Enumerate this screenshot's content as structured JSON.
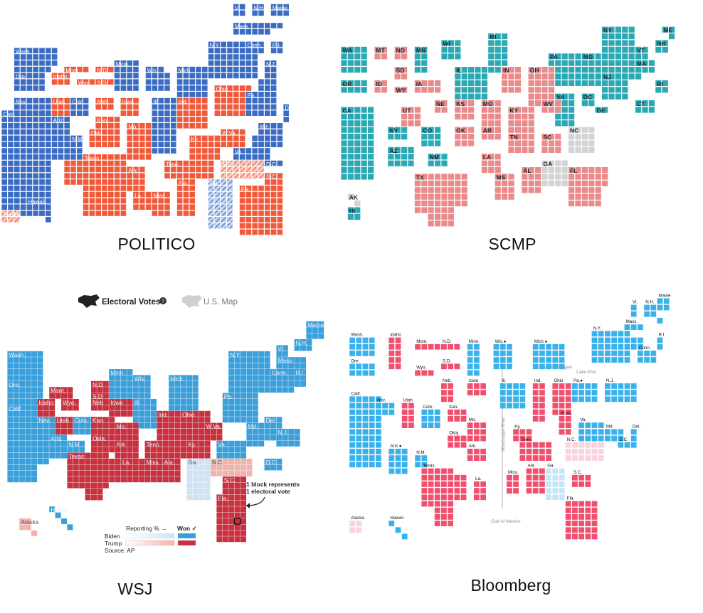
{
  "colors": {
    "politico_blue": "#3b6cc4",
    "politico_red": "#f05a3a",
    "scmp_teal": "#2aa8b4",
    "scmp_red": "#ea8a8a",
    "scmp_gray": "#d3d3d3",
    "wsj_blue": "#3aa0dc",
    "wsj_red": "#c9313f",
    "wsj_light_blue": "#cfe3f3",
    "wsj_light_red": "#f2b3ae",
    "bloomberg_blue": "#39b2ec",
    "bloomberg_red": "#f0506e",
    "bloomberg_light_blue": "#c5e6f8",
    "bloomberg_light_red": "#fbd3dc"
  },
  "captions": {
    "politico": "POLITICO",
    "scmp": "SCMP",
    "wsj": "WSJ",
    "bloomberg": "Bloomberg"
  },
  "wsj_ui": {
    "electoral_votes_toggle": "Electoral Votes",
    "us_map_toggle": "U.S. Map",
    "reporting_label": "Reporting % →",
    "won_label": "Won ✓",
    "biden_label": "Biden",
    "trump_label": "Trump",
    "source": "Source: AP",
    "annotation_line1": "1 block represents",
    "annotation_line2": "1 electoral vote"
  },
  "bloomberg_ui": {
    "lake_michigan": "Lake Michigan",
    "lake_erie": "Lake Erie",
    "mississippi_river": "Mississippi River",
    "gulf_of_mexico": "Gulf of Mexico"
  },
  "politico_states": [
    {
      "label": "Vt.",
      "party": "D"
    },
    {
      "label": "N.H.",
      "party": "D"
    },
    {
      "label": "Maine",
      "party": "D"
    },
    {
      "label": "Mass.",
      "party": "D"
    },
    {
      "label": "Conn.",
      "party": "D"
    },
    {
      "label": "R.I.",
      "party": "D"
    },
    {
      "label": "Wash.",
      "party": "D"
    },
    {
      "label": "Mont.",
      "party": "R"
    },
    {
      "label": "N.D.",
      "party": "R"
    },
    {
      "label": "Minn.",
      "party": "D"
    },
    {
      "label": "Wis.",
      "party": "D"
    },
    {
      "label": "Mich.",
      "party": "D"
    },
    {
      "label": "N.Y.",
      "party": "D"
    },
    {
      "label": "N.J.",
      "party": "D"
    },
    {
      "label": "Ore.",
      "party": "D"
    },
    {
      "label": "Idaho",
      "party": "R"
    },
    {
      "label": "Wyo.",
      "party": "R"
    },
    {
      "label": "S.D.",
      "party": "R"
    },
    {
      "label": "Nev.",
      "party": "D"
    },
    {
      "label": "Utah",
      "party": "R"
    },
    {
      "label": "Colo.",
      "party": "D"
    },
    {
      "label": "Neb.",
      "party": "R"
    },
    {
      "label": "Iowa",
      "party": "R"
    },
    {
      "label": "Ohio",
      "party": "R"
    },
    {
      "label": "Pa.",
      "party": "D"
    },
    {
      "label": "Ind.",
      "party": "R"
    },
    {
      "label": "Ill.",
      "party": "D"
    },
    {
      "label": "Del.",
      "party": "D"
    },
    {
      "label": "Calif.",
      "party": "D"
    },
    {
      "label": "Kan.",
      "party": "R"
    },
    {
      "label": "W.Va.",
      "party": "R"
    },
    {
      "label": "Md.",
      "party": "D"
    },
    {
      "label": "Ariz.",
      "party": "D"
    },
    {
      "label": "N.M.",
      "party": "D"
    },
    {
      "label": "Okla.",
      "party": "R"
    },
    {
      "label": "Mo.",
      "party": "R"
    },
    {
      "label": "Ky.",
      "party": "R"
    },
    {
      "label": "Va.",
      "party": "D"
    },
    {
      "label": "D.C.",
      "party": "D"
    },
    {
      "label": "Texas",
      "party": "R"
    },
    {
      "label": "Ark.",
      "party": "R"
    },
    {
      "label": "Tenn.",
      "party": "R"
    },
    {
      "label": "N.C.",
      "party": "R-lean"
    },
    {
      "label": "S.C.",
      "party": "R"
    },
    {
      "label": "La.",
      "party": "R"
    },
    {
      "label": "Miss.",
      "party": "R"
    },
    {
      "label": "Ala.",
      "party": "R"
    },
    {
      "label": "Ga.",
      "party": "D-lean"
    },
    {
      "label": "Fla.",
      "party": "R"
    },
    {
      "label": "Alaska",
      "party": "R-lean"
    },
    {
      "label": "Hawaii",
      "party": "D"
    }
  ],
  "scmp_states": [
    {
      "label": "ME",
      "party": "D"
    },
    {
      "label": "WA",
      "party": "D"
    },
    {
      "label": "MT",
      "party": "R"
    },
    {
      "label": "ND",
      "party": "R"
    },
    {
      "label": "MN",
      "party": "D"
    },
    {
      "label": "WI",
      "party": "D"
    },
    {
      "label": "MI",
      "party": "D"
    },
    {
      "label": "VT",
      "party": "D"
    },
    {
      "label": "NH",
      "party": "D"
    },
    {
      "label": "SD",
      "party": "R"
    },
    {
      "label": "NY",
      "party": "D"
    },
    {
      "label": "MA",
      "party": "D"
    },
    {
      "label": "PA",
      "party": "D"
    },
    {
      "label": "MD",
      "party": "D"
    },
    {
      "label": "OR",
      "party": "D"
    },
    {
      "label": "ID",
      "party": "R"
    },
    {
      "label": "WY",
      "party": "R"
    },
    {
      "label": "IA",
      "party": "R"
    },
    {
      "label": "IL",
      "party": "D"
    },
    {
      "label": "IN",
      "party": "R"
    },
    {
      "label": "OH",
      "party": "R"
    },
    {
      "label": "NJ",
      "party": "D"
    },
    {
      "label": "RI",
      "party": "D"
    },
    {
      "label": "CT",
      "party": "D"
    },
    {
      "label": "VA",
      "party": "D"
    },
    {
      "label": "DC",
      "party": "D"
    },
    {
      "label": "DE",
      "party": "D"
    },
    {
      "label": "CA",
      "party": "D"
    },
    {
      "label": "UT",
      "party": "R"
    },
    {
      "label": "NE",
      "party": "R"
    },
    {
      "label": "KS",
      "party": "R"
    },
    {
      "label": "MO",
      "party": "R"
    },
    {
      "label": "KY",
      "party": "R"
    },
    {
      "label": "WV",
      "party": "R"
    },
    {
      "label": "NV",
      "party": "D"
    },
    {
      "label": "CO",
      "party": "D"
    },
    {
      "label": "OK",
      "party": "R"
    },
    {
      "label": "AR",
      "party": "R"
    },
    {
      "label": "TN",
      "party": "R"
    },
    {
      "label": "SC",
      "party": "R"
    },
    {
      "label": "NC",
      "party": "U"
    },
    {
      "label": "AZ",
      "party": "D"
    },
    {
      "label": "NM",
      "party": "D"
    },
    {
      "label": "LA",
      "party": "R"
    },
    {
      "label": "GA",
      "party": "U"
    },
    {
      "label": "TX",
      "party": "R"
    },
    {
      "label": "MS",
      "party": "R"
    },
    {
      "label": "AL",
      "party": "R"
    },
    {
      "label": "FL",
      "party": "R"
    },
    {
      "label": "AK",
      "party": "U"
    },
    {
      "label": "HI",
      "party": "D"
    }
  ],
  "wsj_states": [
    {
      "label": "Maine",
      "party": "D"
    },
    {
      "label": "Vt.",
      "party": "D"
    },
    {
      "label": "N.H.",
      "party": "D"
    },
    {
      "label": "Mass.",
      "party": "D"
    },
    {
      "label": "Wash.",
      "party": "D"
    },
    {
      "label": "Conn.",
      "party": "D"
    },
    {
      "label": "R.I.",
      "party": "D"
    },
    {
      "label": "N.D",
      "party": "R"
    },
    {
      "label": "Minn.",
      "party": "D"
    },
    {
      "label": "Wis.",
      "party": "D"
    },
    {
      "label": "N.Y.",
      "party": "D"
    },
    {
      "label": "Ore.",
      "party": "D"
    },
    {
      "label": "Mont.",
      "party": "R"
    },
    {
      "label": "S.D",
      "party": "R"
    },
    {
      "label": "Iowa",
      "party": "R"
    },
    {
      "label": "Mich.",
      "party": "D"
    },
    {
      "label": "Idaho",
      "party": "R"
    },
    {
      "label": "Wyo.",
      "party": "R"
    },
    {
      "label": "Neb",
      "party": "R"
    },
    {
      "label": "Ill.",
      "party": "D"
    },
    {
      "label": "Pa.",
      "party": "D"
    },
    {
      "label": "Nev.",
      "party": "D"
    },
    {
      "label": "Utah",
      "party": "R"
    },
    {
      "label": "Colo.",
      "party": "D"
    },
    {
      "label": "Kan.",
      "party": "R"
    },
    {
      "label": "Mo.",
      "party": "R"
    },
    {
      "label": "Ind.",
      "party": "R"
    },
    {
      "label": "Ohio",
      "party": "R"
    },
    {
      "label": "W.Va.",
      "party": "R"
    },
    {
      "label": "Md.",
      "party": "D"
    },
    {
      "label": "Del.",
      "party": "D"
    },
    {
      "label": "N.J.",
      "party": "D"
    },
    {
      "label": "Calif.",
      "party": "D"
    },
    {
      "label": "Ariz.",
      "party": "D"
    },
    {
      "label": "N.M.",
      "party": "D"
    },
    {
      "label": "Okla.",
      "party": "R"
    },
    {
      "label": "Ark",
      "party": "R"
    },
    {
      "label": "Tenn.",
      "party": "R"
    },
    {
      "label": "Ky.",
      "party": "R"
    },
    {
      "label": "Va.",
      "party": "D"
    },
    {
      "label": "N.C.",
      "party": "R-lean"
    },
    {
      "label": "D.C.",
      "party": "D"
    },
    {
      "label": "Texas",
      "party": "R"
    },
    {
      "label": "La.",
      "party": "R"
    },
    {
      "label": "Miss.",
      "party": "R"
    },
    {
      "label": "Ala.",
      "party": "R"
    },
    {
      "label": "Ga.",
      "party": "D-lean"
    },
    {
      "label": "S.C.",
      "party": "R"
    },
    {
      "label": "Fla.",
      "party": "R"
    },
    {
      "label": "Alaska",
      "party": "R-lean"
    },
    {
      "label": "Hawaii",
      "party": "D"
    }
  ],
  "bloomberg_states": [
    {
      "label": "Vt.",
      "party": "D"
    },
    {
      "label": "N.H.",
      "party": "D"
    },
    {
      "label": "Maine",
      "party": "D"
    },
    {
      "label": "Mass.",
      "party": "D"
    },
    {
      "label": "Wash.",
      "party": "D"
    },
    {
      "label": "Idaho",
      "party": "R"
    },
    {
      "label": "Mont.",
      "party": "R"
    },
    {
      "label": "N.D.",
      "party": "R"
    },
    {
      "label": "Minn.",
      "party": "D"
    },
    {
      "label": "Wis.",
      "party": "D",
      "note": "●"
    },
    {
      "label": "Mich.",
      "party": "D",
      "note": "●"
    },
    {
      "label": "N.Y.",
      "party": "D"
    },
    {
      "label": "R.I.",
      "party": "D"
    },
    {
      "label": "Conn.",
      "party": "D"
    },
    {
      "label": "Ore.",
      "party": "D"
    },
    {
      "label": "S.D.",
      "party": "R"
    },
    {
      "label": "Wyo.",
      "party": "R"
    },
    {
      "label": "Neb.",
      "party": "R"
    },
    {
      "label": "Iowa",
      "party": "R"
    },
    {
      "label": "Ill.",
      "party": "D"
    },
    {
      "label": "Ind.",
      "party": "R"
    },
    {
      "label": "Ohio",
      "party": "R"
    },
    {
      "label": "Pa.",
      "party": "D",
      "note": "●"
    },
    {
      "label": "N.J.",
      "party": "D"
    },
    {
      "label": "Calif.",
      "party": "D"
    },
    {
      "label": "Nev.",
      "party": "D"
    },
    {
      "label": "Utah",
      "party": "R"
    },
    {
      "label": "Colo.",
      "party": "D"
    },
    {
      "label": "Kan.",
      "party": "R"
    },
    {
      "label": "Mo.",
      "party": "R"
    },
    {
      "label": "W.Va.",
      "party": "R"
    },
    {
      "label": "Va.",
      "party": "D"
    },
    {
      "label": "Ky.",
      "party": "R"
    },
    {
      "label": "Md.",
      "party": "D"
    },
    {
      "label": "Del.",
      "party": "D"
    },
    {
      "label": "D.C.",
      "party": "D"
    },
    {
      "label": "Okla.",
      "party": "R"
    },
    {
      "label": "Tenn.",
      "party": "R"
    },
    {
      "label": "N.C.",
      "party": "R-lean"
    },
    {
      "label": "Ariz.",
      "party": "D",
      "note": "●"
    },
    {
      "label": "N.M.",
      "party": "D"
    },
    {
      "label": "Ark.",
      "party": "R"
    },
    {
      "label": "Miss.",
      "party": "R"
    },
    {
      "label": "Ala.",
      "party": "R"
    },
    {
      "label": "Ga.",
      "party": "D-lean"
    },
    {
      "label": "S.C.",
      "party": "R"
    },
    {
      "label": "Texas",
      "party": "R"
    },
    {
      "label": "La.",
      "party": "R"
    },
    {
      "label": "Fla.",
      "party": "R"
    },
    {
      "label": "Alaska",
      "party": "R-lean"
    },
    {
      "label": "Hawaii",
      "party": "D"
    }
  ]
}
